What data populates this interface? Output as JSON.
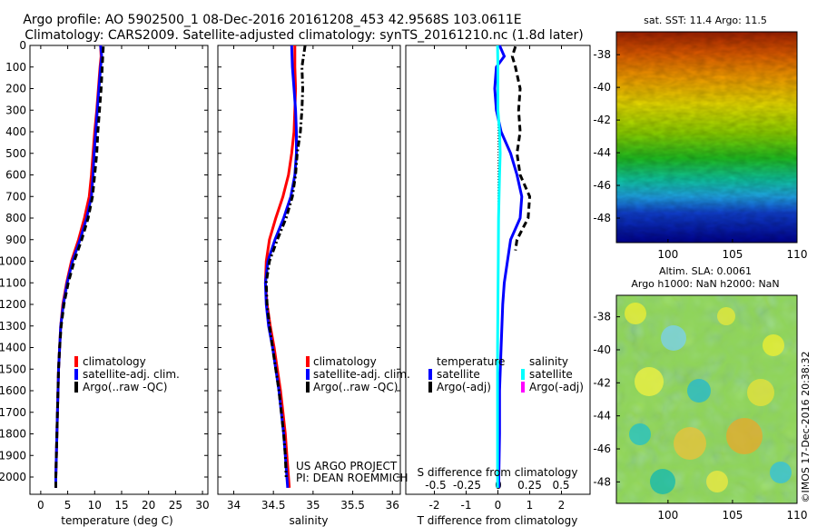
{
  "header": {
    "line1": "Argo profile: AO 5902500_1 08-Dec-2016 20161208_453 42.9568S 103.0611E",
    "line2": "Climatology: CARS2009. Satellite-adjusted climatology: synTS_20161210.nc (1.8d later)"
  },
  "credit": {
    "line1": "US ARGO PROJECT",
    "line2": "PI: DEAN ROEMMICH"
  },
  "stamp": "©IMOS 17-Dec-2016 20:38:32",
  "colors": {
    "climatology": "#ff0000",
    "satellite": "#0000ff",
    "argo": "#000000",
    "sal_satellite": "#00ffff",
    "sal_argo": "#ff00ff"
  },
  "chart_data": [
    {
      "id": "temperature",
      "type": "line",
      "xlabel": "temperature (deg C)",
      "xticks": [
        0,
        5,
        10,
        15,
        20,
        25,
        30
      ],
      "xlim": [
        -2,
        31
      ],
      "ylim": [
        2080,
        0
      ],
      "yticks": [
        0,
        100,
        200,
        300,
        400,
        500,
        600,
        700,
        800,
        900,
        1000,
        1100,
        1200,
        1300,
        1400,
        1500,
        1600,
        1700,
        1800,
        1900,
        2000
      ],
      "legend": [
        "climatology",
        "satellite-adj. clim.",
        "Argo(..raw -QC)"
      ],
      "series": [
        {
          "name": "climatology",
          "style": "solid",
          "color": "#ff0000",
          "points": [
            [
              11.1,
              0
            ],
            [
              11.2,
              50
            ],
            [
              11.0,
              100
            ],
            [
              10.7,
              200
            ],
            [
              10.4,
              300
            ],
            [
              10.0,
              400
            ],
            [
              9.7,
              500
            ],
            [
              9.4,
              600
            ],
            [
              9.0,
              700
            ],
            [
              8.1,
              800
            ],
            [
              7.0,
              900
            ],
            [
              5.7,
              1000
            ],
            [
              4.8,
              1100
            ],
            [
              4.1,
              1200
            ],
            [
              3.7,
              1300
            ],
            [
              3.5,
              1400
            ],
            [
              3.3,
              1500
            ],
            [
              3.2,
              1600
            ],
            [
              3.1,
              1700
            ],
            [
              3.0,
              1800
            ],
            [
              2.9,
              1900
            ],
            [
              2.8,
              2000
            ],
            [
              2.8,
              2050
            ]
          ]
        },
        {
          "name": "satellite-adj. clim.",
          "style": "solid",
          "color": "#0000ff",
          "points": [
            [
              11.1,
              0
            ],
            [
              11.3,
              50
            ],
            [
              11.1,
              100
            ],
            [
              10.8,
              200
            ],
            [
              10.5,
              300
            ],
            [
              10.2,
              400
            ],
            [
              9.9,
              500
            ],
            [
              9.7,
              600
            ],
            [
              9.4,
              700
            ],
            [
              8.5,
              800
            ],
            [
              7.3,
              900
            ],
            [
              5.9,
              1000
            ],
            [
              4.9,
              1100
            ],
            [
              4.2,
              1200
            ],
            [
              3.7,
              1300
            ],
            [
              3.5,
              1400
            ],
            [
              3.3,
              1500
            ],
            [
              3.2,
              1600
            ],
            [
              3.1,
              1700
            ],
            [
              3.0,
              1800
            ],
            [
              2.9,
              1900
            ],
            [
              2.8,
              2000
            ],
            [
              2.8,
              2050
            ]
          ]
        },
        {
          "name": "Argo(..raw -QC)",
          "style": "dash",
          "color": "#000000",
          "points": [
            [
              11.6,
              5
            ],
            [
              11.5,
              50
            ],
            [
              11.4,
              100
            ],
            [
              11.2,
              200
            ],
            [
              10.9,
              300
            ],
            [
              10.6,
              400
            ],
            [
              10.4,
              500
            ],
            [
              10.0,
              600
            ],
            [
              9.6,
              700
            ],
            [
              8.8,
              800
            ],
            [
              7.6,
              900
            ],
            [
              6.2,
              1000
            ],
            [
              5.1,
              1100
            ],
            [
              4.3,
              1200
            ],
            [
              3.8,
              1300
            ],
            [
              3.5,
              1400
            ],
            [
              3.3,
              1500
            ],
            [
              3.2,
              1600
            ],
            [
              3.1,
              1700
            ],
            [
              3.0,
              1800
            ],
            [
              2.9,
              1900
            ],
            [
              2.8,
              2000
            ],
            [
              2.8,
              2050
            ]
          ]
        }
      ]
    },
    {
      "id": "salinity",
      "type": "line",
      "xlabel": "salinity",
      "xticks": [
        34,
        34.5,
        35,
        35.5,
        36
      ],
      "xlim": [
        33.8,
        36.1
      ],
      "ylim": [
        2080,
        0
      ],
      "legend": [
        "climatology",
        "satellite-adj. clim.",
        "Argo(..raw -QC)"
      ],
      "series": [
        {
          "name": "climatology",
          "style": "solid",
          "color": "#ff0000",
          "points": [
            [
              34.77,
              0
            ],
            [
              34.77,
              100
            ],
            [
              34.78,
              200
            ],
            [
              34.77,
              300
            ],
            [
              34.76,
              400
            ],
            [
              34.73,
              500
            ],
            [
              34.69,
              600
            ],
            [
              34.62,
              700
            ],
            [
              34.53,
              800
            ],
            [
              34.45,
              900
            ],
            [
              34.41,
              1000
            ],
            [
              34.4,
              1100
            ],
            [
              34.42,
              1200
            ],
            [
              34.46,
              1300
            ],
            [
              34.51,
              1400
            ],
            [
              34.55,
              1500
            ],
            [
              34.59,
              1600
            ],
            [
              34.62,
              1700
            ],
            [
              34.65,
              1800
            ],
            [
              34.67,
              1900
            ],
            [
              34.69,
              2000
            ],
            [
              34.7,
              2050
            ]
          ]
        },
        {
          "name": "satellite-adj. clim.",
          "style": "solid",
          "color": "#0000ff",
          "points": [
            [
              34.73,
              0
            ],
            [
              34.74,
              100
            ],
            [
              34.76,
              200
            ],
            [
              34.78,
              300
            ],
            [
              34.79,
              400
            ],
            [
              34.79,
              500
            ],
            [
              34.77,
              600
            ],
            [
              34.72,
              700
            ],
            [
              34.63,
              800
            ],
            [
              34.52,
              900
            ],
            [
              34.43,
              1000
            ],
            [
              34.4,
              1100
            ],
            [
              34.41,
              1200
            ],
            [
              34.44,
              1300
            ],
            [
              34.49,
              1400
            ],
            [
              34.53,
              1500
            ],
            [
              34.57,
              1600
            ],
            [
              34.6,
              1700
            ],
            [
              34.63,
              1800
            ],
            [
              34.65,
              1900
            ],
            [
              34.67,
              2000
            ],
            [
              34.68,
              2050
            ]
          ]
        },
        {
          "name": "Argo(..raw -QC)",
          "style": "dashdot",
          "color": "#000000",
          "points": [
            [
              34.9,
              0
            ],
            [
              34.86,
              100
            ],
            [
              34.87,
              200
            ],
            [
              34.86,
              300
            ],
            [
              34.84,
              400
            ],
            [
              34.8,
              500
            ],
            [
              34.78,
              600
            ],
            [
              34.74,
              700
            ],
            [
              34.66,
              800
            ],
            [
              34.55,
              900
            ],
            [
              34.45,
              1000
            ],
            [
              34.41,
              1100
            ],
            [
              34.42,
              1200
            ],
            [
              34.45,
              1300
            ],
            [
              34.49,
              1400
            ],
            [
              34.53,
              1500
            ],
            [
              34.57,
              1600
            ],
            [
              34.6,
              1700
            ],
            [
              34.63,
              1800
            ],
            [
              34.65,
              1900
            ],
            [
              34.66,
              2000
            ]
          ]
        }
      ]
    },
    {
      "id": "difference",
      "type": "line",
      "xlabel": "T difference from climatology",
      "xticks": [
        -2,
        -1,
        0,
        1,
        2
      ],
      "top_label": "S difference from climatology",
      "top_ticks": [
        -0.5,
        -0.25,
        0,
        0.25,
        0.5
      ],
      "xlim": [
        -2.9,
        2.9
      ],
      "ylim": [
        2080,
        0
      ],
      "legend_headers": [
        "temperature",
        "salinity"
      ],
      "legend_left": [
        "satellite",
        "Argo(-adj)"
      ],
      "legend_right": [
        "satellite",
        "Argo(-adj)"
      ],
      "series": [
        {
          "name": "T satellite",
          "style": "solid",
          "color": "#0000ff",
          "points": [
            [
              0.05,
              0
            ],
            [
              0.2,
              50
            ],
            [
              -0.05,
              100
            ],
            [
              -0.1,
              200
            ],
            [
              -0.05,
              300
            ],
            [
              0.1,
              400
            ],
            [
              0.4,
              500
            ],
            [
              0.6,
              600
            ],
            [
              0.75,
              700
            ],
            [
              0.7,
              800
            ],
            [
              0.4,
              900
            ],
            [
              0.3,
              1000
            ],
            [
              0.2,
              1100
            ],
            [
              0.15,
              1200
            ],
            [
              0.1,
              1400
            ],
            [
              0.05,
              1600
            ],
            [
              0.05,
              1800
            ],
            [
              0.03,
              2000
            ],
            [
              0.03,
              2050
            ]
          ]
        },
        {
          "name": "T Argo(-adj)",
          "style": "dash",
          "color": "#000000",
          "points": [
            [
              0.55,
              5
            ],
            [
              0.45,
              50
            ],
            [
              0.55,
              100
            ],
            [
              0.7,
              200
            ],
            [
              0.65,
              300
            ],
            [
              0.7,
              400
            ],
            [
              0.6,
              500
            ],
            [
              0.7,
              600
            ],
            [
              1.0,
              700
            ],
            [
              0.95,
              800
            ],
            [
              0.6,
              900
            ],
            [
              0.55,
              950
            ]
          ]
        },
        {
          "name": "S satellite",
          "style": "solid",
          "color": "#00ffff",
          "points": [
            [
              -0.01,
              0
            ],
            [
              0.0,
              100
            ],
            [
              0.0,
              300
            ],
            [
              0.05,
              400
            ],
            [
              0.07,
              500
            ],
            [
              0.05,
              600
            ],
            [
              0.02,
              800
            ],
            [
              0.01,
              1000
            ],
            [
              0.0,
              1200
            ],
            [
              -0.01,
              1400
            ],
            [
              -0.01,
              1600
            ],
            [
              -0.01,
              1800
            ],
            [
              -0.01,
              2000
            ],
            [
              -0.01,
              2050
            ]
          ]
        }
      ]
    },
    {
      "id": "sst_map",
      "type": "heatmap",
      "title": "sat. SST: 11.4 Argo: 11.5",
      "xticks": [
        100,
        105,
        110
      ],
      "yticks": [
        -38,
        -40,
        -42,
        -44,
        -46,
        -48
      ],
      "xlim": [
        96,
        110
      ],
      "ylim": [
        -49.5,
        -36.6
      ]
    },
    {
      "id": "sla_map",
      "type": "heatmap",
      "title_line1": "Altim. SLA: 0.0061",
      "title_line2": "Argo h1000: NaN h2000: NaN",
      "xticks": [
        100,
        105,
        110
      ],
      "yticks": [
        -38,
        -40,
        -42,
        -44,
        -46,
        -48
      ],
      "xlim": [
        96,
        110
      ],
      "ylim": [
        -49.3,
        -36.7
      ]
    }
  ]
}
